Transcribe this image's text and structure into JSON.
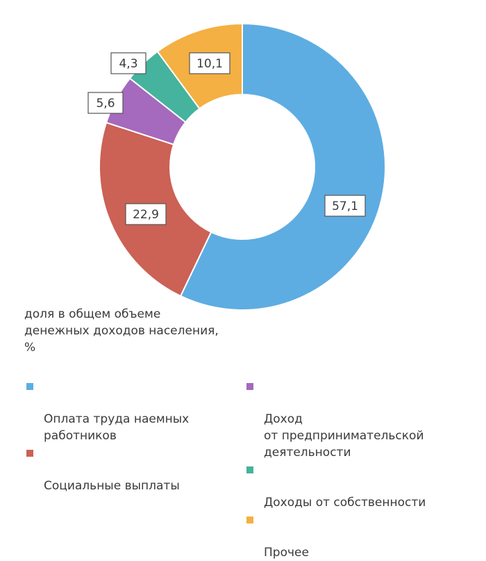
{
  "chart_data": {
    "type": "pie",
    "variant": "donut",
    "categories": [
      "Оплата труда наемных работников",
      "Социальные выплаты",
      "Доход от предпринимательской деятельности",
      "Доходы от собственности",
      "Прочее"
    ],
    "values": [
      57.1,
      22.9,
      5.6,
      4.3,
      10.1
    ],
    "value_labels": [
      "57,1",
      "22,9",
      "5,6",
      "4,3",
      "10,1"
    ],
    "colors": [
      "#5dade2",
      "#cc6155",
      "#a569bd",
      "#45b39d",
      "#f4b042"
    ],
    "title": "",
    "note": "доля в общем объеме\nденежных доходов населения,\n%",
    "legend_position": "bottom"
  },
  "legend": [
    {
      "label": "Оплата труда наемных\nработников",
      "color": "#5dade2"
    },
    {
      "label": "Социальные выплаты",
      "color": "#cc6155"
    },
    {
      "label": "Доход\nот предпринимательской\nдеятельности",
      "color": "#a569bd"
    },
    {
      "label": "Доходы от собственности",
      "color": "#45b39d"
    },
    {
      "label": "Прочее",
      "color": "#f4b042"
    }
  ]
}
